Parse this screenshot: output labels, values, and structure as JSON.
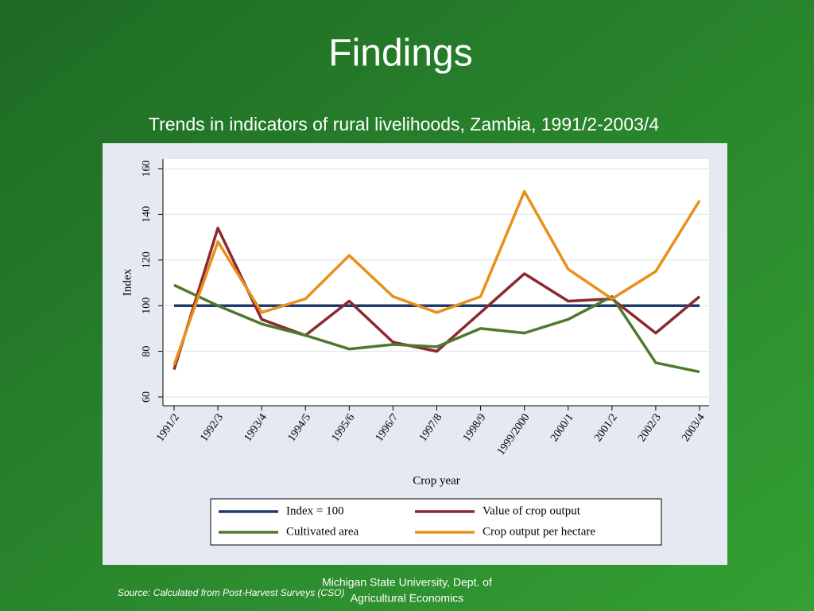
{
  "slide": {
    "title": "Findings",
    "source": "Source: Calculated from Post-Harvest Surveys (CSO)",
    "footer": [
      "Michigan State University, Dept. of",
      "Agricultural Economics"
    ]
  },
  "chart_data": {
    "type": "line",
    "title": "Trends in indicators of rural livelihoods, Zambia, 1991/2-2003/4",
    "x_label": "Crop year",
    "y_label": "Index",
    "categories": [
      "1991/2",
      "1992/3",
      "1993/4",
      "1994/5",
      "1995/6",
      "1996/7",
      "1997/8",
      "1998/9",
      "1999/2000",
      "2000/1",
      "2001/2",
      "2002/3",
      "2003/4"
    ],
    "series": [
      {
        "name": "Index = 100",
        "color": "#1f3a6e",
        "values": [
          100,
          100,
          100,
          100,
          100,
          100,
          100,
          100,
          100,
          100,
          100,
          100,
          100
        ]
      },
      {
        "name": "Value of crop output",
        "color": "#8b2a2e",
        "values": [
          72,
          134,
          94,
          87,
          102,
          84,
          80,
          97,
          114,
          102,
          103,
          88,
          104
        ]
      },
      {
        "name": "Cultivated area",
        "color": "#4d7a2e",
        "values": [
          109,
          100,
          92,
          87,
          81,
          83,
          82,
          90,
          88,
          94,
          104,
          75,
          71
        ]
      },
      {
        "name": "Crop output per hectare",
        "color": "#e8901a",
        "values": [
          74,
          128,
          97,
          103,
          122,
          104,
          97,
          104,
          150,
          116,
          103,
          115,
          146
        ]
      }
    ],
    "ylim": [
      60,
      160
    ],
    "yticks": [
      60,
      80,
      100,
      120,
      140,
      160
    ],
    "grid": true,
    "legend": "bottom"
  }
}
